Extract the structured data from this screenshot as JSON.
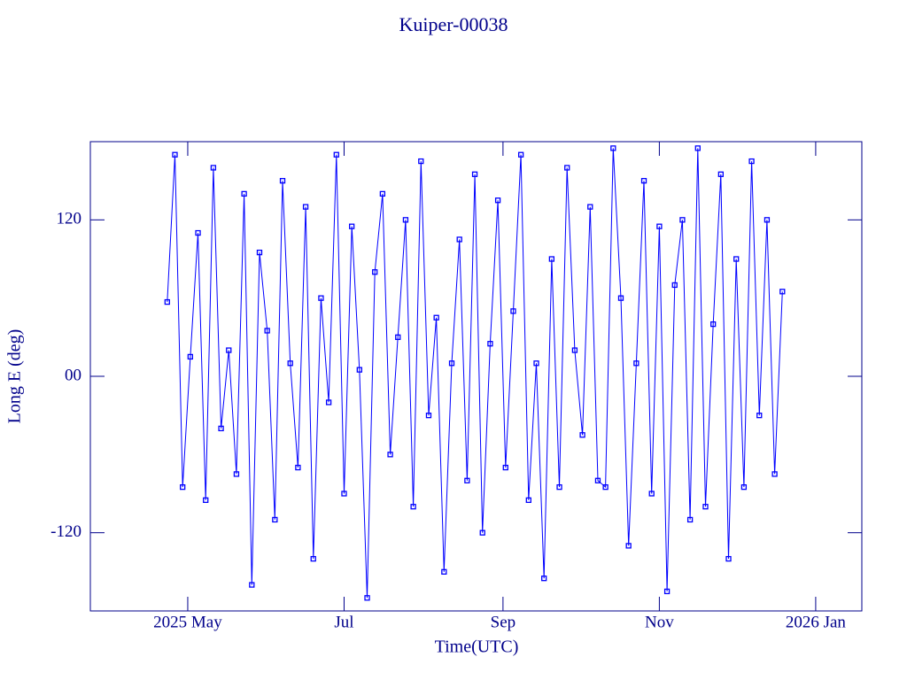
{
  "chart_data": {
    "type": "line",
    "title": "Kuiper-00038",
    "x_label": "Time(UTC)",
    "y_label": "Long E (deg)",
    "color": "#0000ff",
    "axis_color": "#00008b",
    "markers": true,
    "xlim": [
      "2025-03-24",
      "2026-01-19"
    ],
    "xticks": [
      {
        "value": "2025-05-01",
        "label": "2025 May"
      },
      {
        "value": "2025-07-01",
        "label": "Jul"
      },
      {
        "value": "2025-09-01",
        "label": "Sep"
      },
      {
        "value": "2025-11-01",
        "label": "Nov"
      },
      {
        "value": "2026-01-01",
        "label": "2026 Jan"
      }
    ],
    "ylim": [
      -180,
      180
    ],
    "yticks": [
      120,
      {
        "value": 0,
        "label": "00"
      },
      -120
    ],
    "x": [
      "2025-04-23",
      "2025-04-26",
      "2025-04-29",
      "2025-05-02",
      "2025-05-05",
      "2025-05-08",
      "2025-05-11",
      "2025-05-14",
      "2025-05-17",
      "2025-05-20",
      "2025-05-23",
      "2025-05-26",
      "2025-05-29",
      "2025-06-01",
      "2025-06-04",
      "2025-06-07",
      "2025-06-10",
      "2025-06-13",
      "2025-06-16",
      "2025-06-19",
      "2025-06-22",
      "2025-06-25",
      "2025-06-28",
      "2025-07-01",
      "2025-07-04",
      "2025-07-07",
      "2025-07-10",
      "2025-07-13",
      "2025-07-16",
      "2025-07-19",
      "2025-07-22",
      "2025-07-25",
      "2025-07-28",
      "2025-07-31",
      "2025-08-03",
      "2025-08-06",
      "2025-08-09",
      "2025-08-12",
      "2025-08-15",
      "2025-08-18",
      "2025-08-21",
      "2025-08-24",
      "2025-08-27",
      "2025-08-30",
      "2025-09-02",
      "2025-09-05",
      "2025-09-08",
      "2025-09-11",
      "2025-09-14",
      "2025-09-17",
      "2025-09-20",
      "2025-09-23",
      "2025-09-26",
      "2025-09-29",
      "2025-10-02",
      "2025-10-05",
      "2025-10-08",
      "2025-10-11",
      "2025-10-14",
      "2025-10-17",
      "2025-10-20",
      "2025-10-23",
      "2025-10-26",
      "2025-10-29",
      "2025-11-01",
      "2025-11-04",
      "2025-11-07",
      "2025-11-10",
      "2025-11-13",
      "2025-11-16",
      "2025-11-19",
      "2025-11-22",
      "2025-11-25",
      "2025-11-28",
      "2025-12-01",
      "2025-12-04",
      "2025-12-07",
      "2025-12-10",
      "2025-12-13",
      "2025-12-16",
      "2025-12-19"
    ],
    "values": [
      57,
      170,
      -85,
      15,
      110,
      -95,
      160,
      -40,
      20,
      -75,
      140,
      -160,
      95,
      35,
      -110,
      150,
      10,
      -70,
      130,
      -140,
      60,
      -20,
      170,
      -90,
      115,
      5,
      -170,
      80,
      140,
      -60,
      30,
      120,
      -100,
      165,
      -30,
      45,
      -150,
      10,
      105,
      -80,
      155,
      -120,
      25,
      135,
      -70,
      50,
      170,
      -95,
      10,
      -155,
      90,
      -85,
      160,
      20,
      -45,
      130,
      -80,
      -85,
      175,
      60,
      -130,
      10,
      150,
      -90,
      115,
      -165,
      70,
      120,
      -110,
      175,
      -100,
      40,
      155,
      -140,
      90,
      -85,
      165,
      -30,
      120,
      -75,
      65
    ]
  }
}
